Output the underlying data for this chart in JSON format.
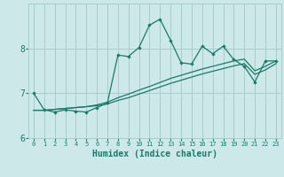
{
  "xlabel": "Humidex (Indice chaleur)",
  "background_color": "#cce8e8",
  "grid_color": "#aacccc",
  "line_color": "#1a7a6a",
  "xlim": [
    -0.5,
    23.5
  ],
  "ylim": [
    6.0,
    9.0
  ],
  "x": [
    0,
    1,
    2,
    3,
    4,
    5,
    6,
    7,
    8,
    9,
    10,
    11,
    12,
    13,
    14,
    15,
    16,
    17,
    18,
    19,
    20,
    21,
    22,
    23
  ],
  "line1": [
    7.0,
    6.63,
    6.58,
    6.63,
    6.6,
    6.58,
    6.68,
    6.78,
    7.85,
    7.82,
    8.02,
    8.52,
    8.65,
    8.18,
    7.68,
    7.65,
    8.05,
    7.88,
    8.05,
    7.75,
    7.6,
    7.25,
    7.72,
    7.72
  ],
  "line2": [
    6.62,
    6.62,
    6.64,
    6.66,
    6.68,
    6.7,
    6.74,
    6.8,
    6.9,
    6.98,
    7.07,
    7.15,
    7.24,
    7.33,
    7.4,
    7.47,
    7.54,
    7.6,
    7.66,
    7.72,
    7.76,
    7.5,
    7.6,
    7.72
  ],
  "line3": [
    6.62,
    6.62,
    6.64,
    6.66,
    6.68,
    6.7,
    6.72,
    6.76,
    6.84,
    6.9,
    6.98,
    7.06,
    7.14,
    7.22,
    7.29,
    7.36,
    7.43,
    7.49,
    7.55,
    7.61,
    7.66,
    7.42,
    7.52,
    7.66
  ],
  "yticks": [
    6,
    7,
    8
  ],
  "xticks": [
    0,
    1,
    2,
    3,
    4,
    5,
    6,
    7,
    8,
    9,
    10,
    11,
    12,
    13,
    14,
    15,
    16,
    17,
    18,
    19,
    20,
    21,
    22,
    23
  ]
}
